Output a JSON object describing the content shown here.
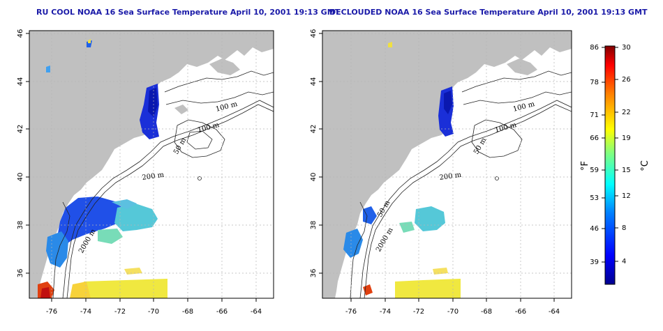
{
  "titles": {
    "left": "RU COOL NOAA 16 Sea Surface Temperature April 10, 2001 19:13 GMT",
    "right": "DECLOUDED NOAA 16 Sea Surface Temperature April 10, 2001 19:13 GMT"
  },
  "axes": {
    "lon_ticks": [
      "-76",
      "-74",
      "-72",
      "-70",
      "-68",
      "-66",
      "-64"
    ],
    "lat_ticks": [
      "46",
      "44",
      "42",
      "40",
      "38",
      "36"
    ]
  },
  "contour_labels": {
    "left": [
      "100 m",
      "100 m",
      "50 m",
      "200 m",
      "2000 m"
    ],
    "right": [
      "100 m",
      "100 m",
      "50 m",
      "200 m",
      "50 m",
      "2000 m"
    ]
  },
  "colorbar": {
    "fahrenheit_ticks": [
      "86",
      "78",
      "71",
      "66",
      "59",
      "53",
      "46",
      "39"
    ],
    "celsius_ticks": [
      "30",
      "26",
      "22",
      "19",
      "15",
      "12",
      "8",
      "4"
    ],
    "fahrenheit_label": "°F",
    "celsius_label": "°C",
    "colors": [
      "#00008f",
      "#0000ff",
      "#0080ff",
      "#00ffff",
      "#80ff80",
      "#ffff00",
      "#ff8000",
      "#ff0000",
      "#800000"
    ]
  },
  "colors": {
    "land": "#c0c0c0",
    "ocean": "#ffffff",
    "title": "#1a1aa8",
    "grid": "#b5b5b5"
  }
}
